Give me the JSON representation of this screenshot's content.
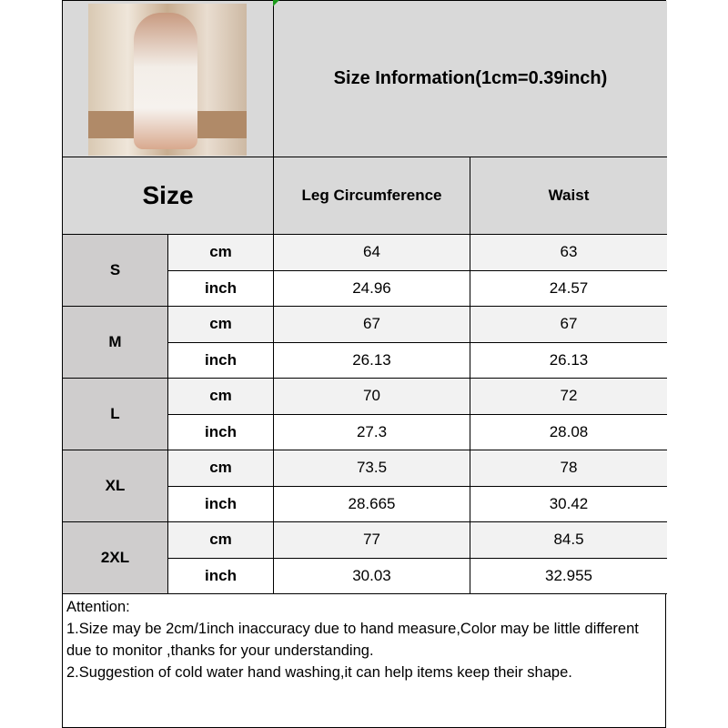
{
  "title": "Size Information(1cm=0.39inch)",
  "header": {
    "size": "Size",
    "columns": [
      "Leg Circumference",
      "Waist"
    ]
  },
  "units": {
    "cm": "cm",
    "inch": "inch"
  },
  "rows": [
    {
      "size": "S",
      "cm": [
        "64",
        "63"
      ],
      "inch": [
        "24.96",
        "24.57"
      ]
    },
    {
      "size": "M",
      "cm": [
        "67",
        "67"
      ],
      "inch": [
        "26.13",
        "26.13"
      ]
    },
    {
      "size": "L",
      "cm": [
        "70",
        "72"
      ],
      "inch": [
        "27.3",
        "28.08"
      ]
    },
    {
      "size": "XL",
      "cm": [
        "73.5",
        "78"
      ],
      "inch": [
        "28.665",
        "30.42"
      ]
    },
    {
      "size": "2XL",
      "cm": [
        "77",
        "84.5"
      ],
      "inch": [
        "30.03",
        "32.955"
      ]
    }
  ],
  "notes": [
    "Attention:",
    "1.Size may be 2cm/1inch inaccuracy due to hand measure,Color may be little different due to monitor ,thanks for your understanding.",
    "2.Suggestion of cold water hand washing,it can help items keep their shape."
  ],
  "colors": {
    "header_bg": "#d9d9d9",
    "size_bg": "#cfcdcd",
    "cm_row_bg": "#f2f2f2"
  }
}
